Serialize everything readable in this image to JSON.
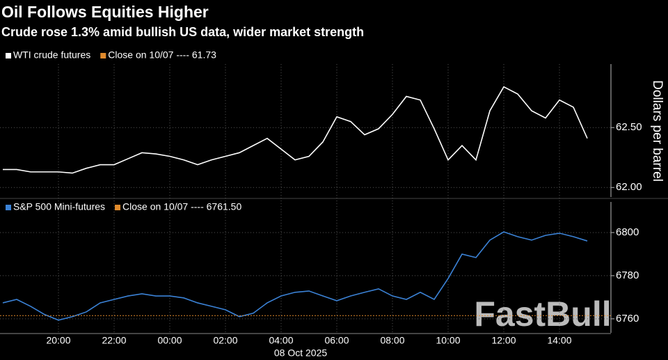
{
  "chart_data": [
    {
      "type": "line",
      "title": "Oil Follows Equities Higher",
      "subtitle": "Crude rose 1.3% amid bullish US data, wider market strength",
      "y_label": "Dollars per barrel",
      "series": [
        {
          "name": "WTI crude futures",
          "color": "#ffffff",
          "values": [
            62.15,
            62.15,
            62.13,
            62.13,
            62.13,
            62.12,
            62.16,
            62.19,
            62.19,
            62.24,
            62.29,
            62.28,
            62.26,
            62.23,
            62.19,
            62.23,
            62.26,
            62.29,
            62.35,
            62.41,
            62.32,
            62.23,
            62.26,
            62.38,
            62.59,
            62.55,
            62.44,
            62.49,
            62.61,
            62.76,
            62.73,
            62.49,
            62.23,
            62.35,
            62.23,
            62.64,
            62.84,
            62.78,
            62.64,
            62.58,
            62.73,
            62.67,
            62.41
          ]
        }
      ],
      "close_label": "Close on 10/07 ---- 61.73",
      "close_color": "#e08a2c",
      "ylim": [
        61.92,
        63.03
      ],
      "yticks": [
        {
          "value": 62,
          "label": "62.00"
        },
        {
          "value": 62.5,
          "label": "62.50"
        }
      ],
      "grid": true
    },
    {
      "type": "line",
      "series": [
        {
          "name": "S&P 500 Mini-futures",
          "color": "#3b82d6",
          "values": [
            6767.4,
            6769,
            6765.8,
            6762,
            6759.4,
            6761,
            6763.2,
            6767.4,
            6769,
            6770.6,
            6771.6,
            6770.6,
            6770.6,
            6769.7,
            6767.4,
            6765.8,
            6764.2,
            6761,
            6762.6,
            6767.4,
            6770.6,
            6772.3,
            6772.9,
            6770.6,
            6768.4,
            6770.6,
            6772.3,
            6773.9,
            6770.6,
            6769,
            6772.3,
            6769,
            6778.7,
            6790,
            6788.4,
            6796.5,
            6800.3,
            6798.1,
            6796.5,
            6798.7,
            6799.7,
            6798.1,
            6796.1
          ]
        }
      ],
      "close_label": "Close on 10/07 ---- 6761.50",
      "close_color": "#e08a2c",
      "close_value": 6761.5,
      "categories": [
        null,
        null,
        null,
        null,
        "20:00",
        null,
        null,
        null,
        "22:00",
        null,
        null,
        null,
        "00:00",
        null,
        null,
        null,
        "02:00",
        null,
        null,
        null,
        "04:00",
        null,
        null,
        null,
        "06:00",
        null,
        null,
        null,
        "08:00",
        null,
        null,
        null,
        "10:00",
        null,
        null,
        null,
        "12:00",
        null,
        null,
        null,
        "14:00",
        null,
        null
      ],
      "x_label": "08 Oct 2025",
      "ylim": [
        6753.5,
        6814.2
      ],
      "yticks": [
        6760,
        6780,
        6800
      ],
      "grid": true
    }
  ],
  "watermark": "FastBull"
}
